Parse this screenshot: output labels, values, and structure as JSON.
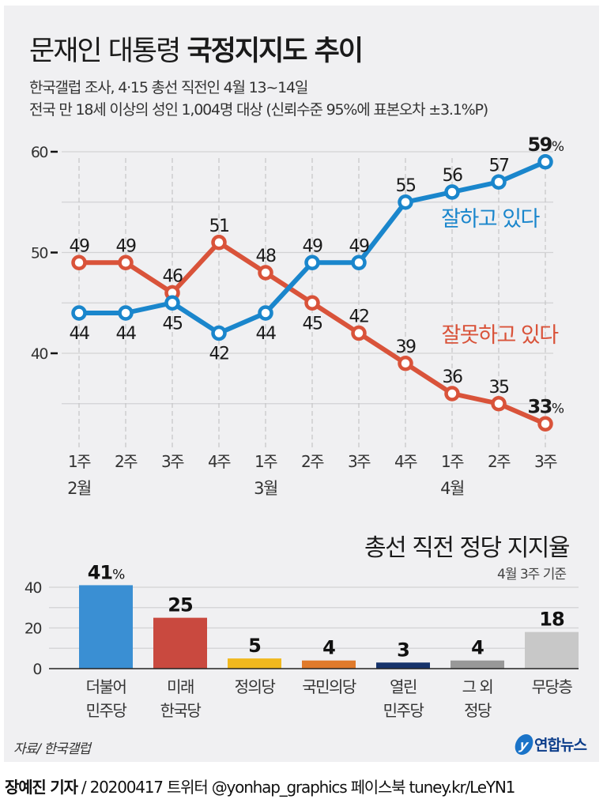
{
  "header": {
    "title_regular": "문재인 대통령",
    "title_bold": "국정지지도 추이",
    "subtitle_line1": "한국갤럽 조사, 4·15 총선 직전인 4월 13~14일",
    "subtitle_line2": "전국 만 18세 이상의 성인 1,004명 대상 (신뢰수준 95%에 표본오차 ±3.1%P)"
  },
  "chart_data": [
    {
      "type": "line",
      "title": "문재인 대통령 국정지지도 추이",
      "x": [
        "1주",
        "2주",
        "3주",
        "4주",
        "1주",
        "2주",
        "3주",
        "4주",
        "1주",
        "2주",
        "3주"
      ],
      "month_labels": [
        {
          "index": 0,
          "label": "2월"
        },
        {
          "index": 4,
          "label": "3월"
        },
        {
          "index": 8,
          "label": "4월"
        }
      ],
      "ylim": [
        32,
        60
      ],
      "yticks": [
        40,
        50,
        60
      ],
      "grid": true,
      "series": [
        {
          "name": "잘하고 있다",
          "color": "#1a86cc",
          "values": [
            44,
            44,
            45,
            42,
            44,
            49,
            49,
            55,
            56,
            57,
            59
          ]
        },
        {
          "name": "잘못하고 있다",
          "color": "#d9533a",
          "values": [
            49,
            49,
            46,
            51,
            48,
            45,
            42,
            39,
            36,
            35,
            33
          ]
        }
      ],
      "label_positions": {
        "잘하고 있다": [
          "below",
          "below",
          "below",
          "below",
          "below",
          "above",
          "above",
          "above",
          "above",
          "above",
          "above"
        ],
        "잘못하고 있다": [
          "above",
          "above",
          "above",
          "above",
          "above",
          "below",
          "above",
          "above",
          "above",
          "above",
          "above"
        ]
      },
      "last_value_unit": "%"
    },
    {
      "type": "bar",
      "title": "총선 직전 정당 지지율",
      "subtitle": "4월 3주 기준",
      "categories": [
        "더불어\n민주당",
        "미래\n한국당",
        "정의당",
        "국민의당",
        "열린\n민주당",
        "그 외\n정당",
        "무당층"
      ],
      "values": [
        41,
        25,
        5,
        4,
        3,
        4,
        18
      ],
      "colors": [
        "#3a8fd3",
        "#c9493f",
        "#f0b81e",
        "#e07a2b",
        "#16336b",
        "#989898",
        "#c8c8c8"
      ],
      "ylim": [
        0,
        40
      ],
      "yticks": [
        0,
        20,
        40
      ],
      "grid": true,
      "first_value_unit": "%"
    }
  ],
  "footer": {
    "source": "자료/ 한국갤럽",
    "logo_text": "연합뉴스",
    "author": "장예진 기자",
    "credit": " / 20200417 트위터 @yonhap_graphics  페이스북 tuney.kr/LeYN1"
  }
}
